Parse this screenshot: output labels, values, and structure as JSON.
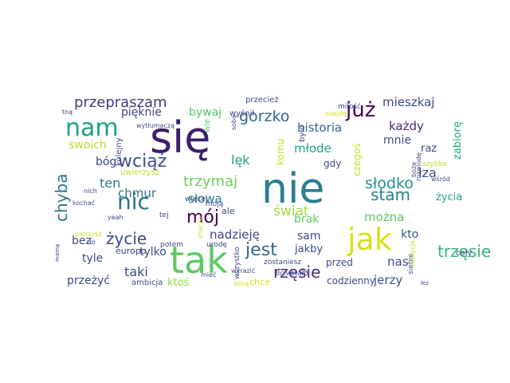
{
  "word_cloud": {
    "words": [
      {
        "text": "się",
        "color": "#3b1f6e",
        "vertical": false
      },
      {
        "text": "nie",
        "color": "#2a7f8e",
        "vertical": false
      },
      {
        "text": "tak",
        "color": "#5ec962",
        "vertical": false
      },
      {
        "text": "jak",
        "color": "#d8e219",
        "vertical": false
      },
      {
        "text": "nam",
        "color": "#1fa187",
        "vertical": false
      },
      {
        "text": "nic",
        "color": "#2c728e",
        "vertical": false
      },
      {
        "text": "już",
        "color": "#440154",
        "vertical": false
      },
      {
        "text": "przepraszam",
        "color": "#443983",
        "vertical": false
      },
      {
        "text": "gorzko",
        "color": "#31688e",
        "vertical": false
      },
      {
        "text": "słodko",
        "color": "#21918c",
        "vertical": false
      },
      {
        "text": "wciąż",
        "color": "#3b528b",
        "vertical": false
      },
      {
        "text": "trzymaj",
        "color": "#6ece58",
        "vertical": false
      },
      {
        "text": "jest",
        "color": "#31688e",
        "vertical": false
      },
      {
        "text": "rzęsie",
        "color": "#472d7b",
        "vertical": false
      },
      {
        "text": "życie",
        "color": "#3e4989",
        "vertical": false
      },
      {
        "text": "mój",
        "color": "#440154",
        "vertical": false
      },
      {
        "text": "stam",
        "color": "#26828e",
        "vertical": false
      },
      {
        "text": "trzęsie",
        "color": "#35b779",
        "vertical": false
      },
      {
        "text": "świat",
        "color": "#9fda3a",
        "vertical": false
      },
      {
        "text": "chyba",
        "color": "#2c728e",
        "vertical": true
      },
      {
        "text": "mieszkaj",
        "color": "#3e4989",
        "vertical": false
      },
      {
        "text": "każdy",
        "color": "#482878",
        "vertical": false
      },
      {
        "text": "historia",
        "color": "#31688e",
        "vertical": false
      },
      {
        "text": "mnie",
        "color": "#3e4989",
        "vertical": false
      },
      {
        "text": "młode",
        "color": "#20a386",
        "vertical": false
      },
      {
        "text": "bywaj",
        "color": "#52c569",
        "vertical": false
      },
      {
        "text": "pięknie",
        "color": "#414487",
        "vertical": false
      },
      {
        "text": "swoich",
        "color": "#b5de2b",
        "vertical": false
      },
      {
        "text": "bóg",
        "color": "#3e4989",
        "vertical": false
      },
      {
        "text": "ten",
        "color": "#2a788e",
        "vertical": false
      },
      {
        "text": "chmur",
        "color": "#2a788e",
        "vertical": false
      },
      {
        "text": "lęk",
        "color": "#1f9e89",
        "vertical": false
      },
      {
        "text": "słowa",
        "color": "#26828e",
        "vertical": false
      },
      {
        "text": "nadzieję",
        "color": "#3e4989",
        "vertical": false
      },
      {
        "text": "można",
        "color": "#5ec962",
        "vertical": false
      },
      {
        "text": "brak",
        "color": "#5ec962",
        "vertical": false
      },
      {
        "text": "sam",
        "color": "#3e4989",
        "vertical": false
      },
      {
        "text": "kto",
        "color": "#3b528b",
        "vertical": false
      },
      {
        "text": "nas",
        "color": "#3e4989",
        "vertical": false
      },
      {
        "text": "jerzy",
        "color": "#3b528b",
        "vertical": false
      },
      {
        "text": "taki",
        "color": "#3e4989",
        "vertical": false
      },
      {
        "text": "tylko",
        "color": "#3e4989",
        "vertical": false
      },
      {
        "text": "tyle",
        "color": "#3e4989",
        "vertical": false
      },
      {
        "text": "bez",
        "color": "#3e4989",
        "vertical": false
      },
      {
        "text": "przeżyć",
        "color": "#3e4989",
        "vertical": false
      },
      {
        "text": "ktoś",
        "color": "#8fd744",
        "vertical": false
      },
      {
        "text": "jakby",
        "color": "#3e4989",
        "vertical": false
      },
      {
        "text": "przed",
        "color": "#3e4989",
        "vertical": false
      },
      {
        "text": "codzienny",
        "color": "#3e4989",
        "vertical": false
      },
      {
        "text": "chce",
        "color": "#d8e219",
        "vertical": false
      },
      {
        "text": "łza",
        "color": "#3b528b",
        "vertical": false
      },
      {
        "text": "raz",
        "color": "#3e4989",
        "vertical": false
      },
      {
        "text": "życia",
        "color": "#20a386",
        "vertical": false
      },
      {
        "text": "zabiorę",
        "color": "#22a884",
        "vertical": true
      },
      {
        "text": "komu",
        "color": "#c2df23",
        "vertical": true
      },
      {
        "text": "czegoś",
        "color": "#c2df23",
        "vertical": true
      },
      {
        "text": "gdy",
        "color": "#3e4989",
        "vertical": false
      },
      {
        "text": "europo",
        "color": "#3e4989",
        "vertical": false
      },
      {
        "text": "ambicja",
        "color": "#3e4989",
        "vertical": false
      },
      {
        "text": "ale",
        "color": "#3e4989",
        "vertical": false
      },
      {
        "text": "przecież",
        "color": "#3e4989",
        "vertical": false
      },
      {
        "text": "wyśnił",
        "color": "#3e4989",
        "vertical": false
      },
      {
        "text": "wie",
        "color": "#5ec962",
        "vertical": true
      },
      {
        "text": "było",
        "color": "#3e4989",
        "vertical": true
      },
      {
        "text": "kolejny",
        "color": "#3e4989",
        "vertical": true
      },
      {
        "text": "uwierzysz",
        "color": "#c2df23",
        "vertical": false
      },
      {
        "text": "więcej",
        "color": "#3e4989",
        "vertical": false
      },
      {
        "text": "moją",
        "color": "#3e4989",
        "vertical": false
      },
      {
        "text": "tej",
        "color": "#3e4989",
        "vertical": false
      },
      {
        "text": "potem",
        "color": "#3e4989",
        "vertical": false
      },
      {
        "text": "urodę",
        "color": "#3e4989",
        "vertical": false
      },
      {
        "text": "wszystko",
        "color": "#3e4989",
        "vertical": true
      },
      {
        "text": "zostaniesz",
        "color": "#3e4989",
        "vertical": false
      },
      {
        "text": "stało",
        "color": "#3e4989",
        "vertical": false
      },
      {
        "text": "siebie",
        "color": "#3e4989",
        "vertical": true
      },
      {
        "text": "cały",
        "color": "#3e4989",
        "vertical": false
      },
      {
        "text": "tradycja",
        "color": "#b5de2b",
        "vertical": true
      },
      {
        "text": "miłość",
        "color": "#3e4989",
        "vertical": false
      },
      {
        "text": "odejdę",
        "color": "#d8e219",
        "vertical": false
      },
      {
        "text": "tną",
        "color": "#3e4989",
        "vertical": false
      },
      {
        "text": "wytłumaczą",
        "color": "#3e4989",
        "vertical": false
      },
      {
        "text": "sobą",
        "color": "#3e4989",
        "vertical": true
      },
      {
        "text": "wyrazić",
        "color": "#3e4989",
        "vertical": false
      },
      {
        "text": "drzwi",
        "color": "#3e4989",
        "vertical": false
      },
      {
        "text": "szybko",
        "color": "#c2df23",
        "vertical": false
      },
      {
        "text": "boże",
        "color": "#3e4989",
        "vertical": true
      },
      {
        "text": "rozwiodę",
        "color": "#3e4989",
        "vertical": true
      },
      {
        "text": "wśród",
        "color": "#3e4989",
        "vertical": false
      },
      {
        "text": "nich",
        "color": "#3e4989",
        "vertical": false
      },
      {
        "text": "kochać",
        "color": "#3e4989",
        "vertical": false
      },
      {
        "text": "yeah",
        "color": "#3e4989",
        "vertical": false
      },
      {
        "text": "patrzysz",
        "color": "#c2df23",
        "vertical": false
      },
      {
        "text": "zło",
        "color": "#3e4989",
        "vertical": false
      },
      {
        "text": "mamą",
        "color": "#3e4989",
        "vertical": true
      },
      {
        "text": "znaczą",
        "color": "#c2df23",
        "vertical": true
      },
      {
        "text": "mieć",
        "color": "#3e4989",
        "vertical": false
      },
      {
        "text": "tobą",
        "color": "#d8e219",
        "vertical": false
      },
      {
        "text": "dni",
        "color": "#3e4989",
        "vertical": false
      },
      {
        "text": "łez",
        "color": "#3e4989",
        "vertical": false
      },
      {
        "text": "nawet",
        "color": "#3e4989",
        "vertical": false
      }
    ]
  }
}
